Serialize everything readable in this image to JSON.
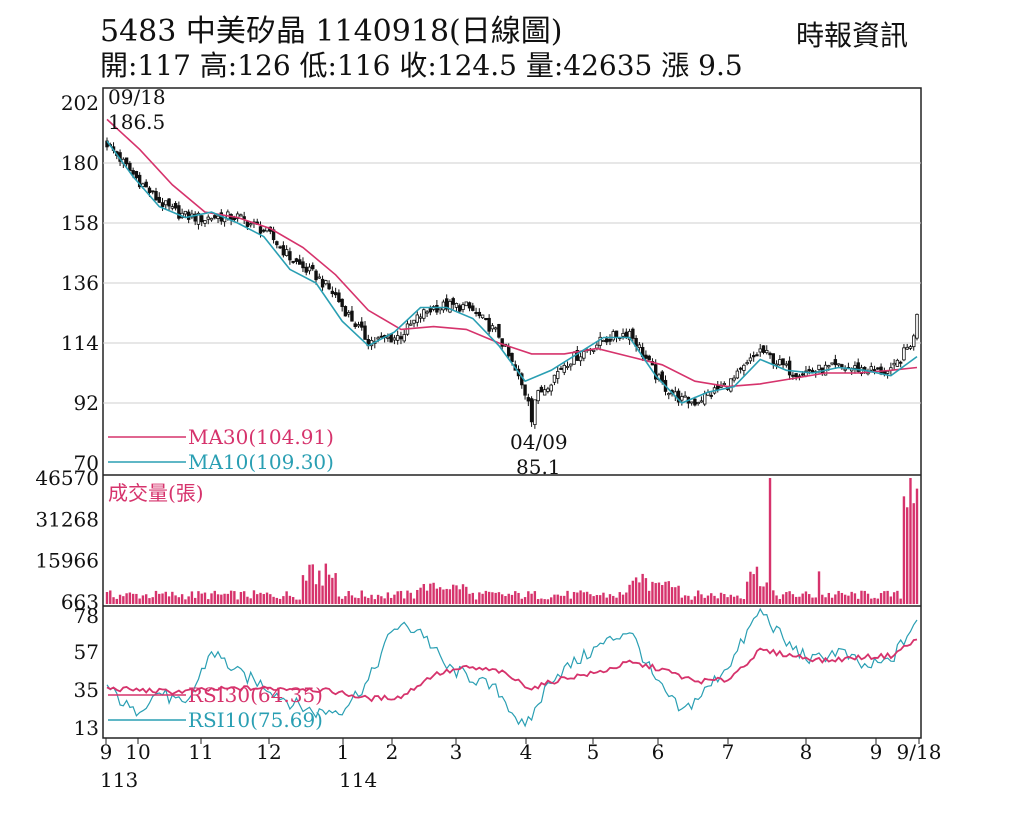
{
  "header": {
    "title": "5483  中美矽晶 1140918(日線圖)",
    "ohlc": "開:117 高:126 低:116 收:124.5 量:42635 漲 9.5",
    "source": "時報資訊"
  },
  "chart_data": [
    {
      "type": "candlestick",
      "panel": "price",
      "y_ticks": [
        "202",
        "180",
        "158",
        "136",
        "114",
        "92",
        "70"
      ],
      "ylim": [
        70,
        202
      ],
      "grid": true,
      "annotations": [
        {
          "date": "09/18",
          "value": "186.5"
        },
        {
          "date": "04/09",
          "value": "85.1"
        }
      ],
      "legend": [
        "MA30(104.91)",
        "MA10(109.30)"
      ],
      "legend_placement": "bottom-left",
      "colors": {
        "candle": "#111111",
        "ma30": "#d6336c",
        "ma10": "#2a9fb3"
      },
      "series": [
        {
          "name": "MA30(104.91)",
          "x": [
            0,
            10,
            20,
            30,
            40,
            50,
            60,
            70,
            80,
            90,
            100,
            110,
            120,
            130,
            140,
            150,
            160,
            170,
            180,
            190,
            200,
            210,
            220,
            230,
            240,
            248
          ],
          "values": [
            196,
            185,
            172,
            162,
            160,
            156,
            149,
            139,
            126,
            119,
            120,
            119,
            114,
            110,
            110,
            112,
            109,
            106,
            100,
            98,
            99,
            101,
            103,
            103,
            104,
            105
          ]
        },
        {
          "name": "MA10(109.30)",
          "x": [
            0,
            8,
            16,
            24,
            32,
            40,
            48,
            56,
            64,
            72,
            80,
            88,
            96,
            104,
            112,
            120,
            128,
            136,
            144,
            152,
            160,
            168,
            176,
            184,
            192,
            200,
            208,
            216,
            224,
            232,
            240,
            248
          ],
          "values": [
            188,
            175,
            164,
            160,
            162,
            158,
            153,
            141,
            136,
            122,
            113,
            118,
            127,
            127,
            123,
            113,
            100,
            104,
            110,
            116,
            116,
            102,
            92,
            96,
            98,
            108,
            104,
            103,
            105,
            104,
            102,
            109
          ]
        }
      ],
      "candles_approx": [
        {
          "x": 0,
          "close": 186.5
        },
        {
          "x": 10,
          "close": 174
        },
        {
          "x": 20,
          "close": 163
        },
        {
          "x": 30,
          "close": 158
        },
        {
          "x": 40,
          "close": 162
        },
        {
          "x": 50,
          "close": 156
        },
        {
          "x": 60,
          "close": 144
        },
        {
          "x": 70,
          "close": 136
        },
        {
          "x": 80,
          "close": 116
        },
        {
          "x": 90,
          "close": 114
        },
        {
          "x": 100,
          "close": 127
        },
        {
          "x": 110,
          "close": 130
        },
        {
          "x": 120,
          "close": 120
        },
        {
          "x": 130,
          "close": 85.1
        },
        {
          "x": 140,
          "close": 106
        },
        {
          "x": 150,
          "close": 113
        },
        {
          "x": 160,
          "close": 120
        },
        {
          "x": 170,
          "close": 98
        },
        {
          "x": 180,
          "close": 91
        },
        {
          "x": 190,
          "close": 100
        },
        {
          "x": 200,
          "close": 114
        },
        {
          "x": 210,
          "close": 103
        },
        {
          "x": 220,
          "close": 105
        },
        {
          "x": 230,
          "close": 105
        },
        {
          "x": 240,
          "close": 104
        },
        {
          "x": 248,
          "close": 124.5
        }
      ]
    },
    {
      "type": "bar",
      "panel": "volume",
      "label": "成交量(張)",
      "y_ticks": [
        "46570",
        "31268",
        "15966",
        "663"
      ],
      "ylim": [
        663,
        46570
      ],
      "color": "#d6336c",
      "spikes": [
        {
          "x": 203,
          "value": 46570
        },
        {
          "x": 246,
          "value": 46570
        },
        {
          "x": 248,
          "value": 42635
        }
      ]
    },
    {
      "type": "line",
      "panel": "rsi",
      "y_ticks": [
        "78",
        "57",
        "35",
        "13"
      ],
      "ylim": [
        5,
        82
      ],
      "legend": [
        "RSI30(64.35)",
        "RSI10(75.69)"
      ],
      "legend_placement": "bottom-left",
      "colors": {
        "rsi30": "#d6336c",
        "rsi10": "#2a9fb3"
      },
      "series": [
        {
          "name": "RSI30(64.35)",
          "x": [
            0,
            10,
            20,
            30,
            40,
            50,
            60,
            70,
            80,
            90,
            100,
            110,
            120,
            130,
            140,
            150,
            160,
            170,
            180,
            190,
            200,
            210,
            220,
            230,
            240,
            248
          ],
          "values": [
            36,
            35,
            34,
            35,
            36,
            36,
            36,
            34,
            30,
            31,
            44,
            48,
            46,
            36,
            42,
            45,
            51,
            47,
            40,
            41,
            58,
            55,
            52,
            54,
            55,
            64.35
          ]
        },
        {
          "name": "RSI10(75.69)",
          "x": [
            0,
            8,
            16,
            24,
            32,
            40,
            48,
            56,
            64,
            72,
            80,
            88,
            96,
            104,
            112,
            120,
            128,
            136,
            144,
            152,
            160,
            168,
            176,
            184,
            192,
            200,
            208,
            216,
            224,
            232,
            240,
            248
          ],
          "values": [
            37,
            22,
            34,
            25,
            58,
            45,
            38,
            28,
            22,
            24,
            40,
            72,
            70,
            48,
            42,
            34,
            12,
            42,
            52,
            62,
            70,
            40,
            22,
            36,
            54,
            82,
            62,
            52,
            58,
            48,
            52,
            75.69
          ]
        }
      ]
    }
  ],
  "x_axis": {
    "tick_labels": [
      "9",
      "10",
      "11",
      "12",
      "1",
      "2",
      "3",
      "4",
      "5",
      "6",
      "7",
      "8",
      "9",
      "9/18"
    ],
    "year_labels": [
      "113",
      "114"
    ]
  }
}
